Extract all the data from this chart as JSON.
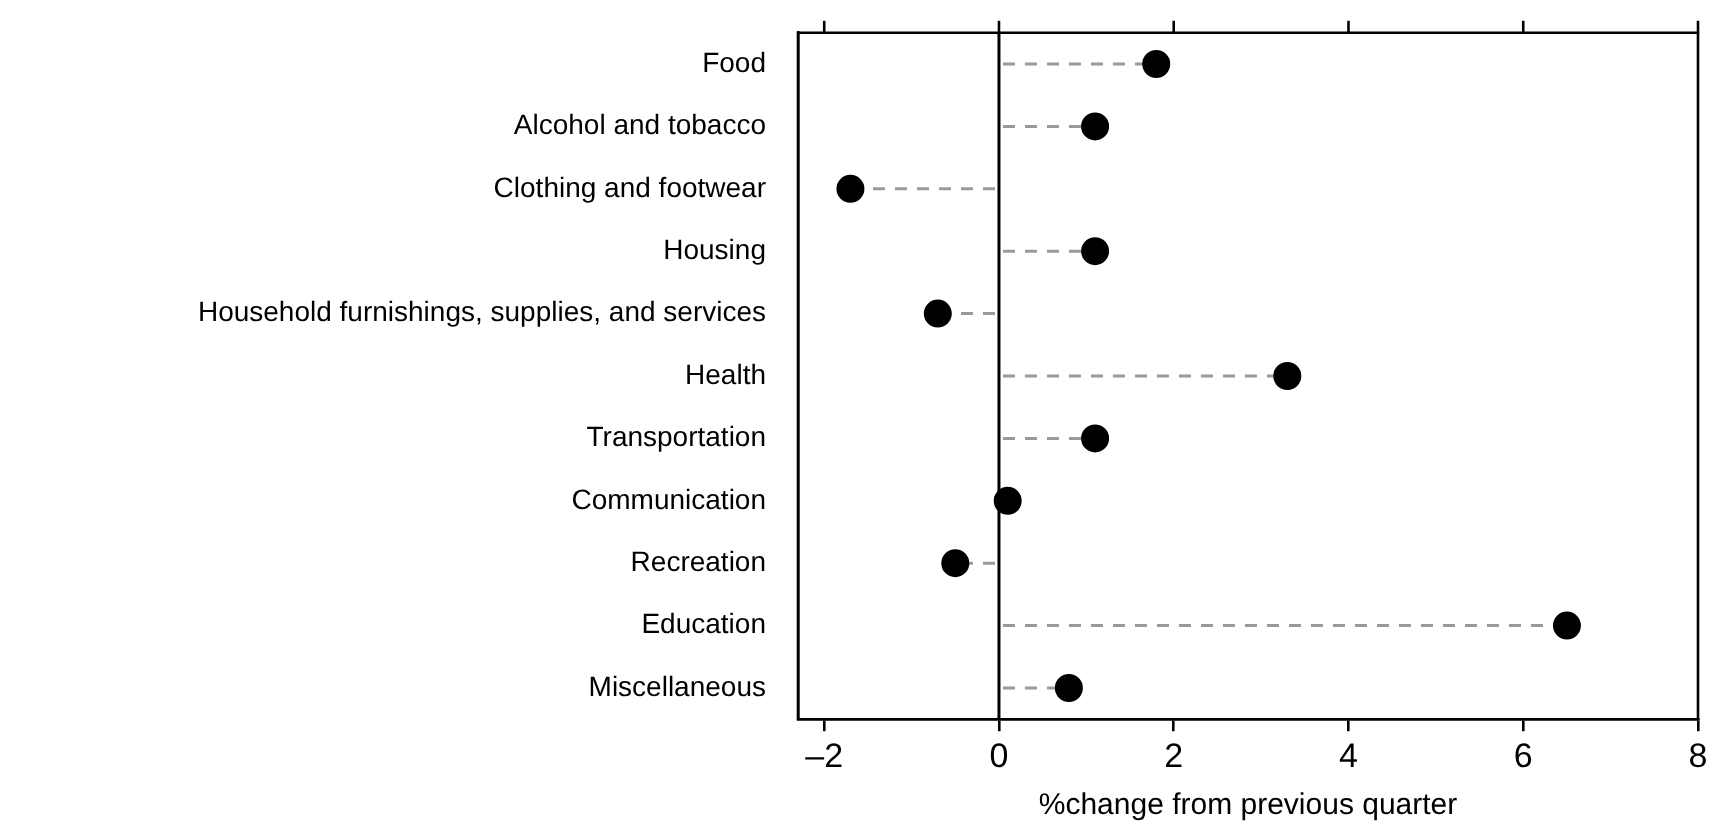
{
  "chart_data": {
    "type": "lollipop",
    "orientation": "horizontal",
    "xlabel": "%change from previous quarter",
    "categories": [
      "Food",
      "Alcohol and tobacco",
      "Clothing and footwear",
      "Housing",
      "Household furnishings, supplies, and services",
      "Health",
      "Transportation",
      "Communication",
      "Recreation",
      "Education",
      "Miscellaneous"
    ],
    "values": [
      1.8,
      1.1,
      -1.7,
      1.1,
      -0.7,
      3.3,
      1.1,
      0.1,
      -0.5,
      6.5,
      0.8
    ],
    "color": "#000000",
    "xlim": [
      -2.3,
      8
    ],
    "xticks": [
      {
        "value": -2,
        "label": "–2"
      },
      0,
      2,
      4,
      6,
      8
    ],
    "ref_lines": [
      {
        "axis": "x",
        "value": 0,
        "color": "#000000"
      }
    ],
    "marker": "circle",
    "line_style": "dashed",
    "grid": false,
    "legend": false
  }
}
